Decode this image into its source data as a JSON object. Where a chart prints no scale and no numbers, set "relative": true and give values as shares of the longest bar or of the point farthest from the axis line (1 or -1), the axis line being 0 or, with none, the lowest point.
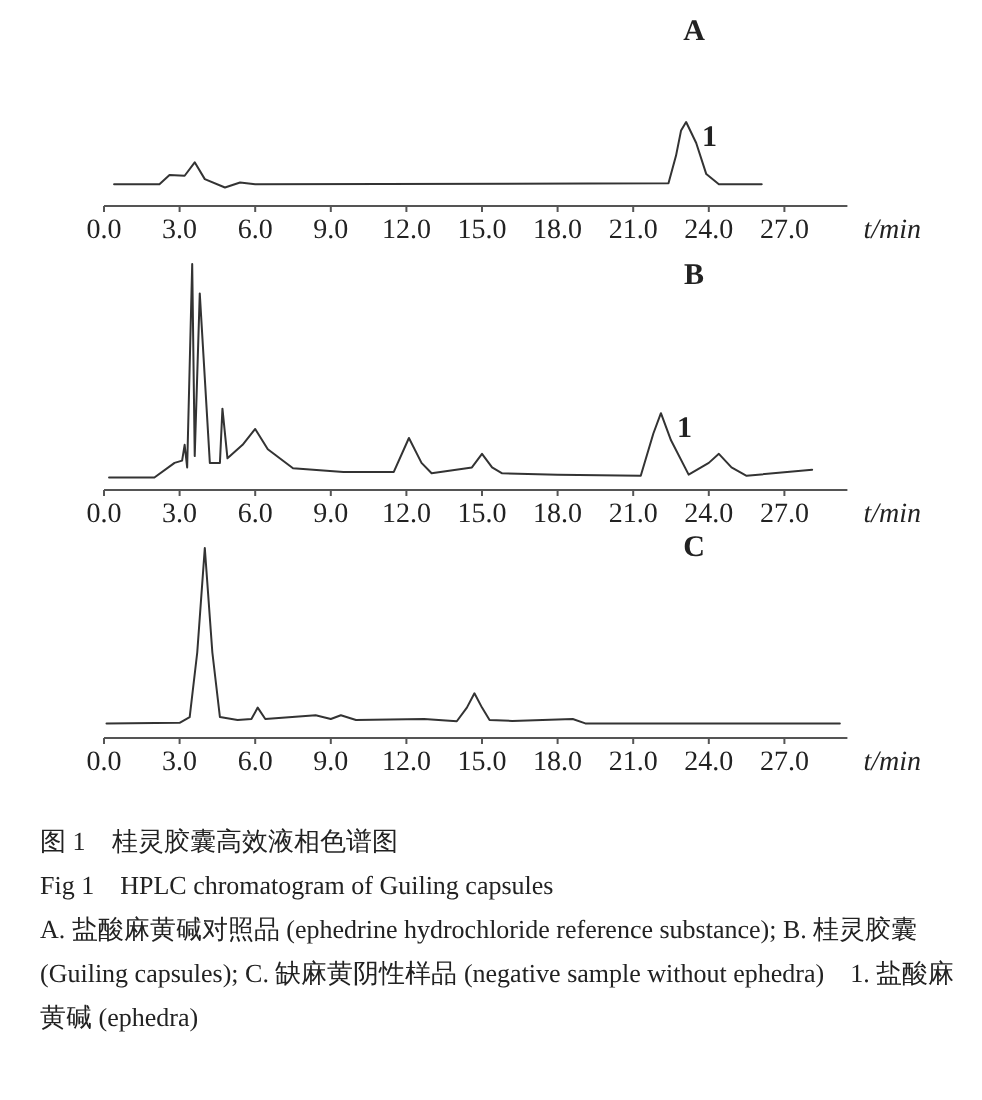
{
  "chart_data": [
    {
      "type": "line",
      "title": "A",
      "xlabel": "t/min",
      "relative": true,
      "xlim": [
        0,
        29.5
      ],
      "xticks": [
        {
          "value": 0,
          "label": "0.0"
        },
        {
          "value": 3,
          "label": "3.0"
        },
        {
          "value": 6,
          "label": "6.0"
        },
        {
          "value": 9,
          "label": "9.0"
        },
        {
          "value": 12,
          "label": "12.0"
        },
        {
          "value": 15,
          "label": "15.0"
        },
        {
          "value": 18,
          "label": "18.0"
        },
        {
          "value": 21,
          "label": "21.0"
        },
        {
          "value": 24,
          "label": "24.0"
        },
        {
          "value": 27,
          "label": "27.0"
        }
      ],
      "x": [
        0.4,
        2.2,
        2.6,
        3.2,
        3.6,
        4.0,
        4.8,
        5.4,
        6.0,
        22.4,
        22.7,
        22.9,
        23.1,
        23.5,
        23.9,
        24.4,
        26.1
      ],
      "series": [
        {
          "color": "#333333",
          "values": [
            0.26,
            0.26,
            0.37,
            0.36,
            0.52,
            0.32,
            0.22,
            0.28,
            0.26,
            0.27,
            0.6,
            0.9,
            1.0,
            0.75,
            0.38,
            0.26,
            0.26
          ]
        }
      ],
      "annotations": [
        {
          "text": "1",
          "x": 23.1,
          "y": 1.0
        }
      ]
    },
    {
      "type": "line",
      "title": "B",
      "xlabel": "t/min",
      "relative": true,
      "xlim": [
        0,
        29.5
      ],
      "xticks": [
        {
          "value": 0,
          "label": "0.0"
        },
        {
          "value": 3,
          "label": "3.0"
        },
        {
          "value": 6,
          "label": "6.0"
        },
        {
          "value": 9,
          "label": "9.0"
        },
        {
          "value": 12,
          "label": "12.0"
        },
        {
          "value": 15,
          "label": "15.0"
        },
        {
          "value": 18,
          "label": "18.0"
        },
        {
          "value": 21,
          "label": "21.0"
        },
        {
          "value": 24,
          "label": "24.0"
        },
        {
          "value": 27,
          "label": "27.0"
        }
      ],
      "x": [
        0.2,
        2.0,
        2.8,
        3.1,
        3.2,
        3.3,
        3.5,
        3.6,
        3.8,
        4.2,
        4.6,
        4.7,
        4.9,
        5.5,
        6.0,
        6.5,
        7.5,
        9.5,
        11.5,
        12.1,
        12.6,
        13.0,
        14.6,
        15.0,
        15.4,
        15.8,
        18.0,
        21.3,
        21.8,
        22.1,
        22.5,
        23.2,
        24.0,
        24.4,
        24.9,
        25.5,
        28.1
      ],
      "series": [
        {
          "color": "#333333",
          "values": [
            0.055,
            0.055,
            0.12,
            0.13,
            0.2,
            0.1,
            1.0,
            0.15,
            0.87,
            0.12,
            0.12,
            0.36,
            0.14,
            0.2,
            0.27,
            0.18,
            0.096,
            0.08,
            0.08,
            0.23,
            0.12,
            0.074,
            0.1,
            0.16,
            0.1,
            0.074,
            0.068,
            0.063,
            0.25,
            0.34,
            0.22,
            0.068,
            0.12,
            0.16,
            0.1,
            0.063,
            0.09
          ]
        }
      ],
      "annotations": [
        {
          "text": "1",
          "x": 22.1,
          "y": 0.34
        }
      ]
    },
    {
      "type": "line",
      "title": "C",
      "xlabel": "t/min",
      "relative": true,
      "xlim": [
        0,
        29.5
      ],
      "xticks": [
        {
          "value": 0,
          "label": "0.0"
        },
        {
          "value": 3,
          "label": "3.0"
        },
        {
          "value": 6,
          "label": "6.0"
        },
        {
          "value": 9,
          "label": "9.0"
        },
        {
          "value": 12,
          "label": "12.0"
        },
        {
          "value": 15,
          "label": "15.0"
        },
        {
          "value": 18,
          "label": "18.0"
        },
        {
          "value": 21,
          "label": "21.0"
        },
        {
          "value": 24,
          "label": "24.0"
        },
        {
          "value": 27,
          "label": "27.0"
        }
      ],
      "x": [
        0.1,
        3.0,
        3.4,
        3.7,
        4.0,
        4.3,
        4.6,
        5.3,
        5.85,
        6.1,
        6.4,
        8.4,
        9.0,
        9.4,
        10.0,
        12.7,
        14.0,
        14.4,
        14.7,
        15.0,
        15.3,
        16.2,
        18.6,
        19.1,
        29.2
      ],
      "series": [
        {
          "color": "#333333",
          "values": [
            0.077,
            0.08,
            0.11,
            0.45,
            1.0,
            0.45,
            0.11,
            0.095,
            0.1,
            0.16,
            0.1,
            0.12,
            0.1,
            0.12,
            0.095,
            0.1,
            0.088,
            0.16,
            0.235,
            0.16,
            0.095,
            0.09,
            0.1,
            0.077,
            0.077
          ]
        }
      ],
      "annotations": [
        "图 1　桂灵胶囊高效液相色谱图",
        "Fig 1　HPLC chromatogram of Guiling capsules",
        "A. 盐酸麻黄碱对照品 (ephedrine hydrochloride reference substance); B. 桂灵胶囊 (Guiling capsules); C. 缺麻黄阴性样品 (negative sample without ephedra)　1. 盐酸麻黄碱 (ephedra)"
      ]
    }
  ]
}
